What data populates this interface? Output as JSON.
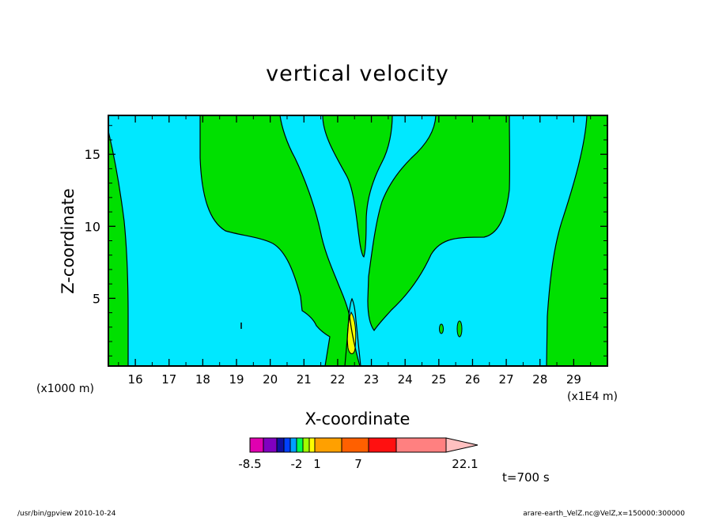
{
  "chart_data": {
    "type": "contour",
    "title": "vertical velocity",
    "xlabel": "X-coordinate",
    "ylabel": "Z-coordinate",
    "x_unit_left": "(x1000 m)",
    "x_unit_right": "(x1E4 m)",
    "xlim": [
      15.2,
      30.0
    ],
    "ylim": [
      0.3,
      17.7
    ],
    "x_ticks": [
      "16",
      "17",
      "18",
      "19",
      "20",
      "21",
      "22",
      "23",
      "24",
      "25",
      "26",
      "27",
      "28",
      "29"
    ],
    "y_ticks": [
      "5",
      "10",
      "15"
    ],
    "colorbar": {
      "tick_labels": [
        "-8.5",
        "-2",
        "1",
        "7",
        "22.1"
      ],
      "colors": [
        "#e000b0",
        "#8000c0",
        "#1010a0",
        "#0040ff",
        "#00a0ff",
        "#00ff50",
        "#a0ff00",
        "#ffff00",
        "#ffa000",
        "#ff6000",
        "#ff1010",
        "#ff8080",
        "#ffc0c0"
      ]
    },
    "field_colors": {
      "low": "#00e8ff",
      "mid": "#00e000",
      "high": "#f0ff00"
    },
    "time_label": "t=700 s"
  },
  "footer": {
    "left": "/usr/bin/gpview  2010-10-24",
    "right": "arare-earth_VelZ.nc@VelZ,x=150000:300000"
  }
}
